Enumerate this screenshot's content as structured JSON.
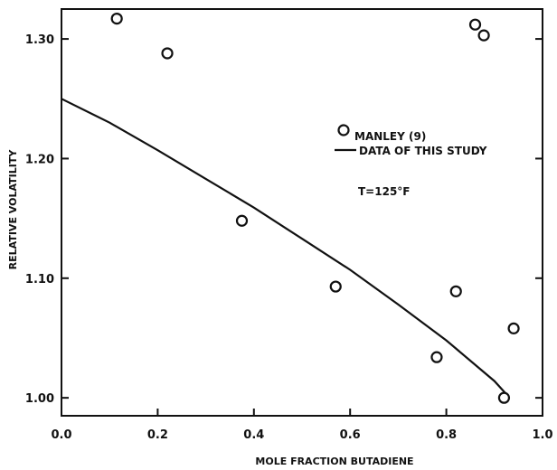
{
  "chart_data": {
    "type": "scatter",
    "title": "",
    "xlabel": "MOLE FRACTION BUTADIENE",
    "ylabel": "RELATIVE VOLATILITY",
    "xlim": [
      0.0,
      1.0
    ],
    "ylim": [
      0.985,
      1.325
    ],
    "xticks": [
      0.0,
      0.2,
      0.4,
      0.6,
      0.8,
      1.0
    ],
    "xtick_labels": [
      "0.0",
      "0.2",
      "0.4",
      "0.6",
      "0.8",
      "1.0"
    ],
    "yticks": [
      1.0,
      1.1,
      1.2,
      1.3
    ],
    "ytick_labels": [
      "1.00",
      "1.10",
      "1.20",
      "1.30"
    ],
    "grid": false,
    "legend_placement": "center-right",
    "series": [
      {
        "name": "MANLEY (9)",
        "kind": "scatter",
        "marker": "open-circle",
        "x": [
          0.115,
          0.22,
          0.375,
          0.57,
          0.78,
          0.82,
          0.86,
          0.878,
          0.92,
          0.94
        ],
        "y": [
          1.317,
          1.288,
          1.148,
          1.093,
          1.034,
          1.089,
          1.312,
          1.303,
          1.0,
          1.058
        ]
      },
      {
        "name": "DATA OF THIS STUDY",
        "kind": "line",
        "x": [
          0.0,
          0.1,
          0.2,
          0.3,
          0.4,
          0.5,
          0.6,
          0.7,
          0.8,
          0.9,
          0.925
        ],
        "y": [
          1.25,
          1.23,
          1.207,
          1.183,
          1.159,
          1.133,
          1.107,
          1.078,
          1.048,
          1.014,
          1.003
        ]
      }
    ],
    "annotations": [
      {
        "text": "T=125°F"
      }
    ]
  }
}
